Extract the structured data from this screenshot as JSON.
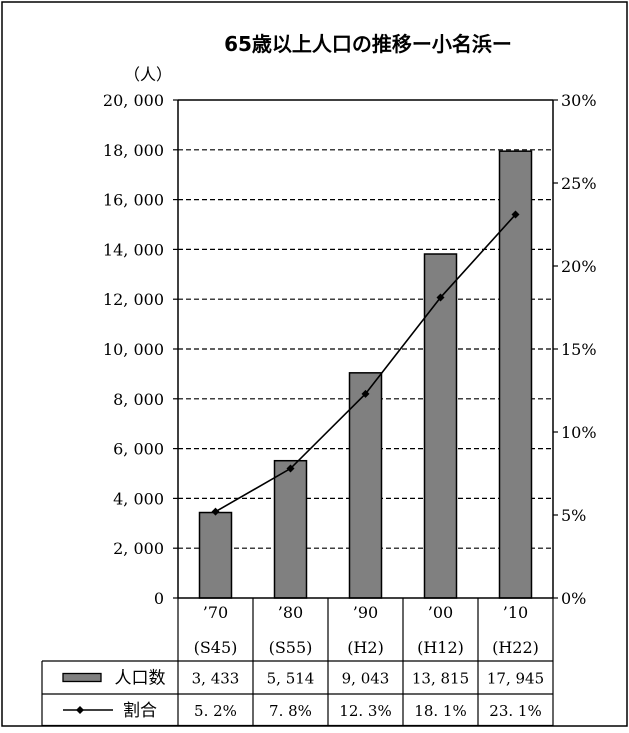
{
  "chart_data": {
    "type": "bar",
    "title": "65歳以上人口の推移ー小名浜ー",
    "ylabel_left": "（人）",
    "categories": [
      {
        "line1": "’70",
        "line2": "(S45)"
      },
      {
        "line1": "’80",
        "line2": "(S55)"
      },
      {
        "line1": "’90",
        "line2": "(H2)"
      },
      {
        "line1": "’00",
        "line2": "(H12)"
      },
      {
        "line1": "’10",
        "line2": "(H22)"
      }
    ],
    "y_left": {
      "min": 0,
      "max": 20000,
      "step": 2000,
      "tick_labels": [
        "0",
        "2, 000",
        "4, 000",
        "6, 000",
        "8, 000",
        "10, 000",
        "12, 000",
        "14, 000",
        "16, 000",
        "18, 000",
        "20, 000"
      ]
    },
    "y_right": {
      "min": 0,
      "max": 30,
      "step": 5,
      "tick_labels": [
        "0%",
        "5%",
        "10%",
        "15%",
        "20%",
        "25%",
        "30%"
      ]
    },
    "grid": true,
    "legend": "table-below",
    "series": [
      {
        "name": "人口数",
        "kind": "bar",
        "axis": "left",
        "color": "#808080",
        "values": [
          3433,
          5514,
          9043,
          13815,
          17945
        ],
        "labels": [
          "3, 433",
          "5, 514",
          "9, 043",
          "13, 815",
          "17, 945"
        ]
      },
      {
        "name": "割合",
        "kind": "line",
        "axis": "right",
        "color": "#000000",
        "values": [
          5.2,
          7.8,
          12.3,
          18.1,
          23.1
        ],
        "labels": [
          "5. 2%",
          "7. 8%",
          "12. 3%",
          "18. 1%",
          "23. 1%"
        ]
      }
    ]
  }
}
